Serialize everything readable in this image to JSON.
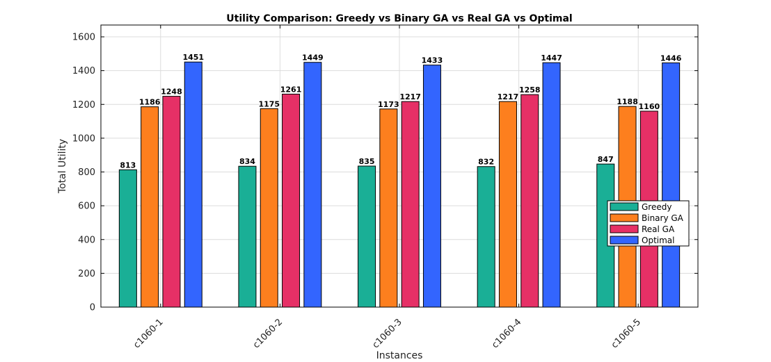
{
  "chart_data": {
    "type": "bar",
    "title": "Utility Comparison: Greedy vs Binary GA vs Real GA vs Optimal",
    "xlabel": "Instances",
    "ylabel": "Total Utility",
    "ylim": [
      0,
      1670
    ],
    "yticks": [
      0,
      200,
      400,
      600,
      800,
      1000,
      1200,
      1400,
      1600
    ],
    "grid": true,
    "legend_position": "right-center",
    "categories": [
      "c1060-1",
      "c1060-2",
      "c1060-3",
      "c1060-4",
      "c1060-5"
    ],
    "series": [
      {
        "name": "Greedy",
        "color": "#1aaf96",
        "values": [
          813,
          834,
          835,
          832,
          847
        ]
      },
      {
        "name": "Binary GA",
        "color": "#fd7f1e",
        "values": [
          1186,
          1175,
          1173,
          1217,
          1188
        ]
      },
      {
        "name": "Real GA",
        "color": "#e63066",
        "values": [
          1248,
          1261,
          1217,
          1258,
          1160
        ]
      },
      {
        "name": "Optimal",
        "color": "#3365fe",
        "values": [
          1451,
          1449,
          1433,
          1447,
          1446
        ]
      }
    ]
  }
}
